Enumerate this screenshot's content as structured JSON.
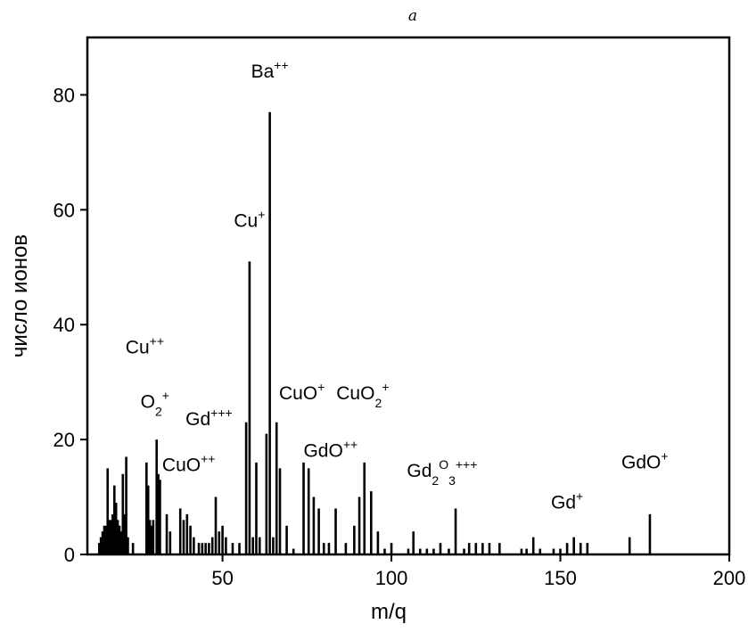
{
  "chart_data": {
    "type": "bar",
    "title": "",
    "panel_label": "a",
    "xlabel": "m/q",
    "ylabel": "число ионов",
    "xlim": [
      10,
      200
    ],
    "ylim": [
      0,
      90
    ],
    "xticks": [
      50,
      100,
      150,
      200
    ],
    "yticks": [
      0,
      20,
      40,
      60,
      80
    ],
    "grid": false,
    "peaks": [
      {
        "x": 13.5,
        "y": 2
      },
      {
        "x": 14.0,
        "y": 3
      },
      {
        "x": 14.5,
        "y": 4
      },
      {
        "x": 15.0,
        "y": 5
      },
      {
        "x": 15.5,
        "y": 5
      },
      {
        "x": 16.0,
        "y": 15
      },
      {
        "x": 16.5,
        "y": 6
      },
      {
        "x": 17.0,
        "y": 6
      },
      {
        "x": 17.5,
        "y": 7
      },
      {
        "x": 18.0,
        "y": 12
      },
      {
        "x": 18.5,
        "y": 9
      },
      {
        "x": 19.0,
        "y": 6
      },
      {
        "x": 19.5,
        "y": 5
      },
      {
        "x": 20.0,
        "y": 4
      },
      {
        "x": 20.5,
        "y": 14
      },
      {
        "x": 21.0,
        "y": 7
      },
      {
        "x": 21.5,
        "y": 17
      },
      {
        "x": 22.0,
        "y": 3
      },
      {
        "x": 23.5,
        "y": 2
      },
      {
        "x": 27.5,
        "y": 16
      },
      {
        "x": 28.0,
        "y": 12
      },
      {
        "x": 28.5,
        "y": 6
      },
      {
        "x": 29.0,
        "y": 5
      },
      {
        "x": 29.5,
        "y": 6
      },
      {
        "x": 30.5,
        "y": 20
      },
      {
        "x": 31.0,
        "y": 14
      },
      {
        "x": 31.5,
        "y": 13
      },
      {
        "x": 33.5,
        "y": 7
      },
      {
        "x": 34.5,
        "y": 4
      },
      {
        "x": 37.5,
        "y": 8
      },
      {
        "x": 38.5,
        "y": 6
      },
      {
        "x": 39.5,
        "y": 7
      },
      {
        "x": 40.5,
        "y": 5
      },
      {
        "x": 41.5,
        "y": 3
      },
      {
        "x": 43.0,
        "y": 2
      },
      {
        "x": 44.0,
        "y": 2
      },
      {
        "x": 45.0,
        "y": 2
      },
      {
        "x": 46.0,
        "y": 2
      },
      {
        "x": 47.0,
        "y": 3
      },
      {
        "x": 48.0,
        "y": 10
      },
      {
        "x": 49.0,
        "y": 4
      },
      {
        "x": 50.0,
        "y": 5
      },
      {
        "x": 51.0,
        "y": 3
      },
      {
        "x": 53.0,
        "y": 2
      },
      {
        "x": 55.0,
        "y": 2
      },
      {
        "x": 57.0,
        "y": 23
      },
      {
        "x": 58.0,
        "y": 51
      },
      {
        "x": 59.0,
        "y": 3
      },
      {
        "x": 60.0,
        "y": 16
      },
      {
        "x": 61.0,
        "y": 3
      },
      {
        "x": 63.0,
        "y": 21
      },
      {
        "x": 64.0,
        "y": 77
      },
      {
        "x": 65.0,
        "y": 3
      },
      {
        "x": 66.0,
        "y": 23
      },
      {
        "x": 67.0,
        "y": 15
      },
      {
        "x": 69.0,
        "y": 5
      },
      {
        "x": 71.0,
        "y": 1
      },
      {
        "x": 74.0,
        "y": 16
      },
      {
        "x": 75.5,
        "y": 15
      },
      {
        "x": 77.0,
        "y": 10
      },
      {
        "x": 78.5,
        "y": 8
      },
      {
        "x": 80.0,
        "y": 2
      },
      {
        "x": 81.5,
        "y": 2
      },
      {
        "x": 83.5,
        "y": 8
      },
      {
        "x": 86.5,
        "y": 2
      },
      {
        "x": 89.0,
        "y": 5
      },
      {
        "x": 90.5,
        "y": 10
      },
      {
        "x": 92.0,
        "y": 16
      },
      {
        "x": 94.0,
        "y": 11
      },
      {
        "x": 96.0,
        "y": 4
      },
      {
        "x": 98.0,
        "y": 1
      },
      {
        "x": 100.0,
        "y": 2
      },
      {
        "x": 105.0,
        "y": 1
      },
      {
        "x": 106.5,
        "y": 4
      },
      {
        "x": 108.5,
        "y": 1
      },
      {
        "x": 110.5,
        "y": 1
      },
      {
        "x": 112.5,
        "y": 1
      },
      {
        "x": 114.5,
        "y": 2
      },
      {
        "x": 117.0,
        "y": 1
      },
      {
        "x": 119.0,
        "y": 8
      },
      {
        "x": 121.5,
        "y": 1
      },
      {
        "x": 123.0,
        "y": 2
      },
      {
        "x": 125.0,
        "y": 2
      },
      {
        "x": 127.0,
        "y": 2
      },
      {
        "x": 129.0,
        "y": 2
      },
      {
        "x": 132.0,
        "y": 2
      },
      {
        "x": 138.5,
        "y": 1
      },
      {
        "x": 140.0,
        "y": 1
      },
      {
        "x": 142.0,
        "y": 3
      },
      {
        "x": 144.0,
        "y": 1
      },
      {
        "x": 148.0,
        "y": 1
      },
      {
        "x": 150.0,
        "y": 1
      },
      {
        "x": 152.0,
        "y": 2
      },
      {
        "x": 154.0,
        "y": 3
      },
      {
        "x": 156.0,
        "y": 2
      },
      {
        "x": 158.0,
        "y": 2
      },
      {
        "x": 170.5,
        "y": 3
      },
      {
        "x": 176.5,
        "y": 7
      }
    ],
    "annotations": [
      {
        "base": "Ba",
        "sub": "",
        "sup": "++",
        "x": 64.0,
        "y": 83
      },
      {
        "base": "Cu",
        "sub": "",
        "sup": "+",
        "x": 58.0,
        "y": 57
      },
      {
        "base": "Cu",
        "sub": "",
        "sup": "++",
        "x": 27.0,
        "y": 35
      },
      {
        "base": "O",
        "sub": "2",
        "sup": "+",
        "x": 30.0,
        "y": 25.5
      },
      {
        "base": "Gd",
        "sub": "",
        "sup": "+++",
        "x": 46.0,
        "y": 22.5
      },
      {
        "base": "CuO",
        "sub": "",
        "sup": "+",
        "x": 73.5,
        "y": 27
      },
      {
        "base": "CuO",
        "sub": "2",
        "sup": "+",
        "x": 91.5,
        "y": 27
      },
      {
        "base": "CuO",
        "sub": "",
        "sup": "++",
        "x": 40.0,
        "y": 14.5
      },
      {
        "base": "GdO",
        "sub": "",
        "sup": "++",
        "x": 82.0,
        "y": 17
      },
      {
        "base": "Gd",
        "sub": "2",
        "sup": "O",
        "sub2": "3",
        "sup2": "+++",
        "x": 115.0,
        "y": 13.5
      },
      {
        "base": "Gd",
        "sub": "",
        "sup": "+",
        "x": 152.0,
        "y": 8
      },
      {
        "base": "GdO",
        "sub": "",
        "sup": "+",
        "x": 175.0,
        "y": 15
      }
    ]
  }
}
